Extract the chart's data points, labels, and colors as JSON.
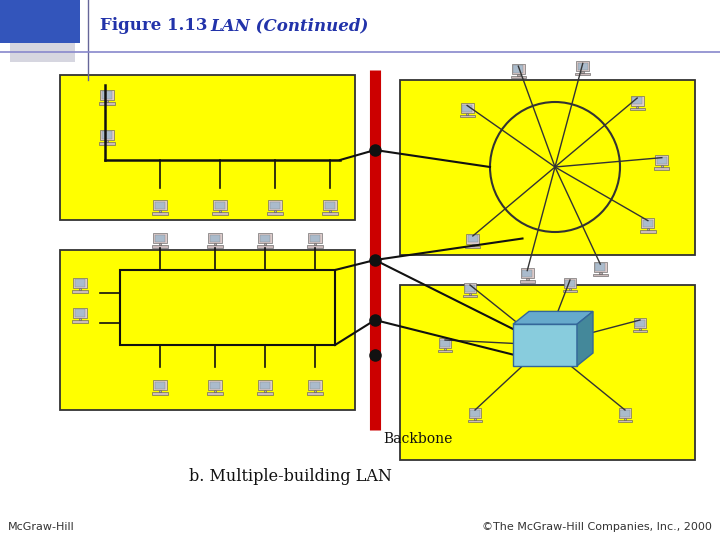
{
  "bg_color": "#ffffff",
  "yellow_fill": "#ffff00",
  "red_line_color": "#cc0000",
  "footer_left": "McGraw-Hill",
  "footer_right": "©The McGraw-Hill Companies, Inc., 2000",
  "backbone_label": "Backbone",
  "subtitle": "b. Multiple-building LAN",
  "title_bold": "Figure 1.13",
  "title_italic": "LAN (Continued)"
}
